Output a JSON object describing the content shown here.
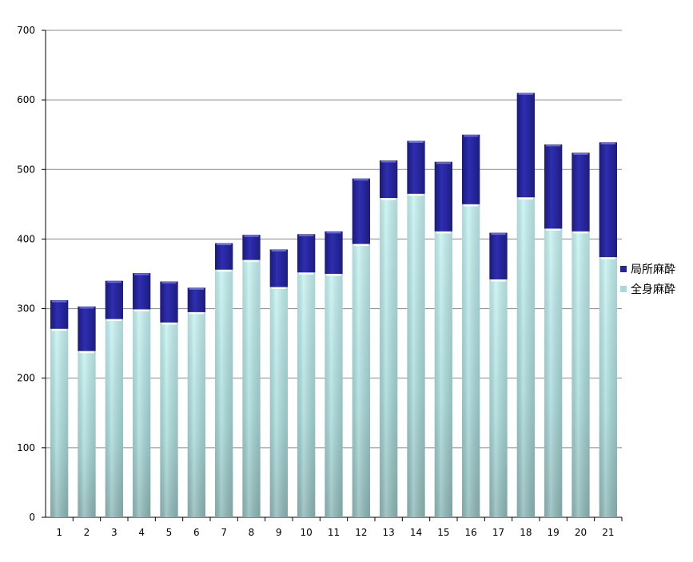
{
  "chart_data": {
    "type": "bar",
    "stacked": true,
    "categories": [
      "1",
      "2",
      "3",
      "4",
      "5",
      "6",
      "7",
      "8",
      "9",
      "10",
      "11",
      "12",
      "13",
      "14",
      "15",
      "16",
      "17",
      "18",
      "19",
      "20",
      "21"
    ],
    "series": [
      {
        "name": "全身麻酔",
        "color": "#a8d8d8",
        "values": [
          271,
          239,
          285,
          299,
          280,
          295,
          356,
          370,
          331,
          352,
          350,
          393,
          459,
          465,
          411,
          450,
          342,
          460,
          415,
          411,
          374
        ]
      },
      {
        "name": "局所麻酔",
        "color": "#23239a",
        "values": [
          41,
          64,
          55,
          52,
          59,
          35,
          38,
          36,
          54,
          55,
          61,
          94,
          54,
          76,
          100,
          100,
          67,
          150,
          121,
          113,
          165
        ]
      }
    ],
    "legend_order": [
      "局所麻酔",
      "全身麻酔"
    ],
    "ylim": [
      0,
      700
    ],
    "yticks": [
      "0",
      "100",
      "200",
      "300",
      "400",
      "500",
      "600",
      "700"
    ],
    "grid": true,
    "legend_position": "right",
    "title": "",
    "xlabel": "",
    "ylabel": ""
  }
}
